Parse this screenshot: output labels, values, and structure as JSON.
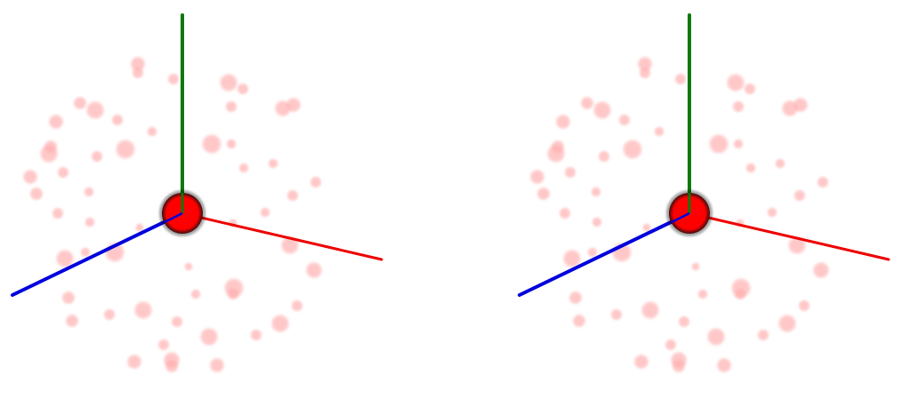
{
  "scene": {
    "background": "#ffffff",
    "axis_colors": {
      "x": "#ee0000",
      "y": "#0a7a0a",
      "z": "#0000dd"
    },
    "center_sphere_color": "#ff0000",
    "particle_color": "#ff9a9a",
    "views": [
      "left-eye",
      "right-eye"
    ]
  }
}
